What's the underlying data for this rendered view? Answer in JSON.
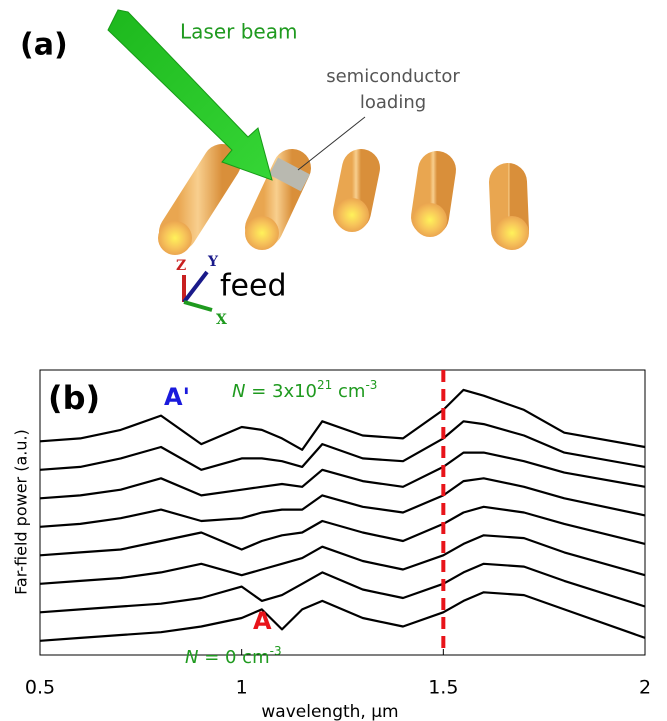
{
  "panel_a": {
    "label": "(a)",
    "laser_label": "Laser beam",
    "loading_label": [
      "semiconductor",
      "loading"
    ],
    "feed_label": "feed",
    "axes": [
      "Z",
      "Y",
      "X"
    ]
  },
  "chart_data": {
    "type": "line",
    "panel_label": "(b)",
    "x_label": "wavelength, μm",
    "y_label": "Far-field power (a.u.)",
    "x": [
      0.5,
      0.6,
      0.7,
      0.8,
      0.9,
      1.0,
      1.05,
      1.1,
      1.15,
      1.2,
      1.3,
      1.4,
      1.5,
      1.55,
      1.6,
      1.7,
      1.8,
      2.0
    ],
    "series": [
      {
        "color": "#000000",
        "values": [
          0.5,
          0.6,
          0.7,
          0.8,
          1.0,
          1.3,
          1.6,
          0.9,
          1.6,
          1.9,
          1.3,
          1.0,
          1.5,
          1.9,
          2.2,
          2.1,
          1.6,
          0.6
        ]
      },
      {
        "color": "#000000",
        "values": [
          1.5,
          1.6,
          1.7,
          1.8,
          2.0,
          2.4,
          1.9,
          2.1,
          2.5,
          2.9,
          2.3,
          2.0,
          2.5,
          2.9,
          3.2,
          3.1,
          2.6,
          1.7
        ]
      },
      {
        "color": "#000000",
        "values": [
          2.5,
          2.6,
          2.7,
          2.9,
          3.2,
          2.8,
          3.0,
          3.2,
          3.4,
          3.8,
          3.3,
          3.0,
          3.5,
          3.9,
          4.2,
          4.1,
          3.6,
          2.8
        ]
      },
      {
        "color": "#000000",
        "values": [
          3.5,
          3.6,
          3.7,
          4.0,
          4.3,
          3.7,
          4.0,
          4.2,
          4.3,
          4.7,
          4.3,
          4.0,
          4.6,
          5.0,
          5.2,
          5.0,
          4.6,
          3.9
        ]
      },
      {
        "color": "#000000",
        "values": [
          4.5,
          4.6,
          4.8,
          5.1,
          4.7,
          4.8,
          5.0,
          5.1,
          5.1,
          5.6,
          5.2,
          5.0,
          5.6,
          6.1,
          6.2,
          5.9,
          5.5,
          4.9
        ]
      },
      {
        "color": "#000000",
        "values": [
          5.5,
          5.6,
          5.8,
          6.2,
          5.6,
          5.8,
          5.9,
          6.0,
          5.9,
          6.5,
          6.1,
          5.9,
          6.6,
          7.1,
          7.1,
          6.8,
          6.4,
          5.9
        ]
      },
      {
        "color": "#000000",
        "values": [
          6.5,
          6.6,
          6.9,
          7.3,
          6.5,
          6.9,
          6.9,
          6.8,
          6.6,
          7.4,
          6.9,
          6.8,
          7.6,
          8.2,
          8.1,
          7.7,
          7.1,
          6.6
        ]
      },
      {
        "color": "#000000",
        "values": [
          7.5,
          7.6,
          7.9,
          8.4,
          7.4,
          8.0,
          7.9,
          7.6,
          7.2,
          8.2,
          7.7,
          7.6,
          8.6,
          9.3,
          9.1,
          8.6,
          7.8,
          7.3
        ]
      }
    ],
    "xlim": [
      0.5,
      2
    ],
    "xticks": [
      0.5,
      1,
      1.5,
      2
    ],
    "ylim": [
      0,
      10
    ],
    "marker_x": 1.5,
    "marker_color": "#e8141a",
    "label_top_point": "A'",
    "label_top_color": "#1a1adc",
    "label_bottom_point": "A",
    "label_bottom_color": "#e8141a",
    "label_top_density": [
      "N",
      " = 3x10",
      "21",
      " cm",
      "-3"
    ],
    "label_bottom_density": [
      "N",
      " = 0 cm",
      "-3"
    ],
    "density_color": "#1f9a1f"
  }
}
